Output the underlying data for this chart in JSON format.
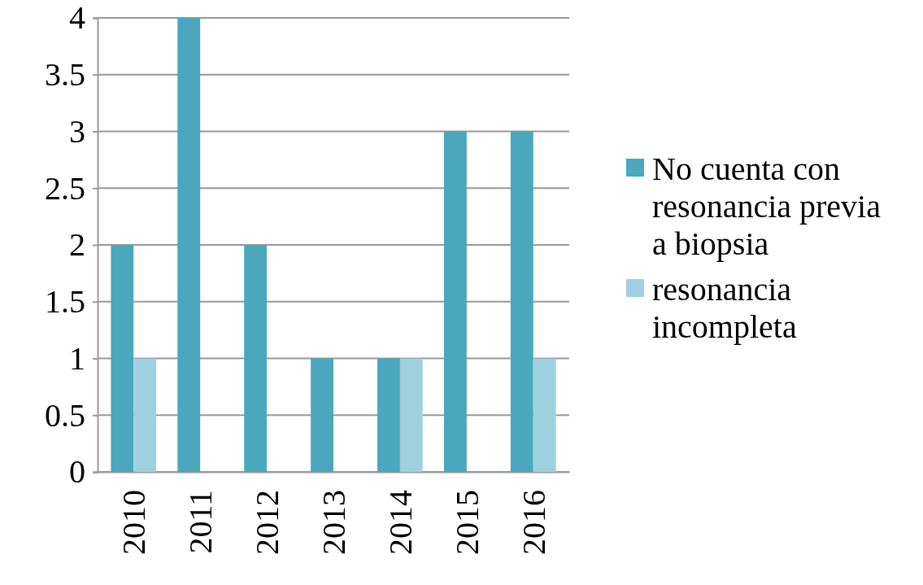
{
  "chart_data": {
    "type": "bar",
    "categories": [
      "2010",
      "2011",
      "2012",
      "2013",
      "2014",
      "2015",
      "2016"
    ],
    "series": [
      {
        "name": "No cuenta con resonancia previa a biopsia",
        "color": "#4aa7bd",
        "values": [
          2,
          4,
          2,
          1,
          1,
          3,
          3
        ]
      },
      {
        "name": "resonancia incompleta",
        "color": "#9fd0de",
        "values": [
          1,
          0,
          0,
          0,
          1,
          0,
          1
        ]
      }
    ],
    "ylim": [
      0,
      4
    ],
    "yticks": [
      0,
      0.5,
      1,
      1.5,
      2,
      2.5,
      3,
      3.5,
      4
    ],
    "grid": "y",
    "legend": "right"
  }
}
